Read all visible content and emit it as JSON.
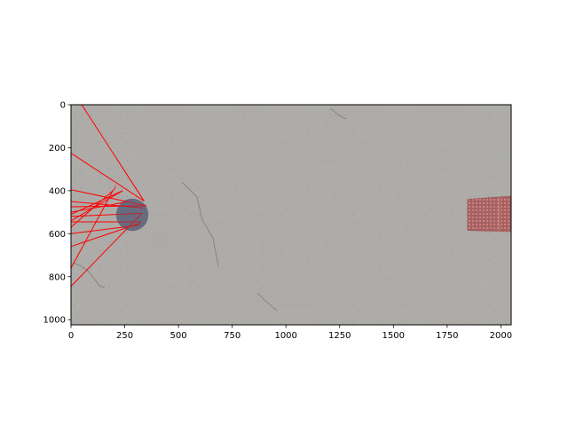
{
  "chart_data": {
    "type": "scatter",
    "title": "",
    "xlabel": "",
    "ylabel": "",
    "xlim": [
      0,
      2048
    ],
    "ylim": [
      1024,
      0
    ],
    "y_inverted": true,
    "grid": false,
    "x_ticks": [
      0,
      250,
      500,
      750,
      1000,
      1250,
      1500,
      1750,
      2000
    ],
    "y_ticks": [
      0,
      200,
      400,
      600,
      800,
      1000
    ],
    "background_image": "concrete-floor-texture-with-dot-grid",
    "colors": {
      "rays": "#ff0000",
      "robot": "#5a6078",
      "obstacle": "#a05050",
      "grid_dots": "#c07070",
      "floor": "#a9a7a3"
    },
    "robot": {
      "cx": 285,
      "cy": 512,
      "r": 75
    },
    "obstacle": {
      "x_left": 1845,
      "x_right": 2048,
      "y_top_left": 440,
      "y_bottom_left": 585,
      "y_top_right": 425,
      "y_bottom_right": 590
    },
    "rays": [
      {
        "x1": 340,
        "y1": 448,
        "x2": 50,
        "y2": 0
      },
      {
        "x1": 340,
        "y1": 448,
        "x2": 0,
        "y2": 225
      },
      {
        "x1": 350,
        "y1": 470,
        "x2": 0,
        "y2": 395
      },
      {
        "x1": 350,
        "y1": 470,
        "x2": 0,
        "y2": 475
      },
      {
        "x1": 335,
        "y1": 480,
        "x2": 0,
        "y2": 450
      },
      {
        "x1": 330,
        "y1": 505,
        "x2": 0,
        "y2": 520
      },
      {
        "x1": 330,
        "y1": 505,
        "x2": 0,
        "y2": 845
      },
      {
        "x1": 325,
        "y1": 545,
        "x2": 0,
        "y2": 545
      },
      {
        "x1": 320,
        "y1": 560,
        "x2": 0,
        "y2": 600
      },
      {
        "x1": 325,
        "y1": 550,
        "x2": 0,
        "y2": 660
      },
      {
        "x1": 240,
        "y1": 400,
        "x2": 0,
        "y2": 510
      },
      {
        "x1": 240,
        "y1": 400,
        "x2": 0,
        "y2": 540
      },
      {
        "x1": 195,
        "y1": 400,
        "x2": 0,
        "y2": 760
      },
      {
        "x1": 195,
        "y1": 400,
        "x2": 0,
        "y2": 570
      },
      {
        "x1": 270,
        "y1": 450,
        "x2": 0,
        "y2": 500
      }
    ]
  }
}
